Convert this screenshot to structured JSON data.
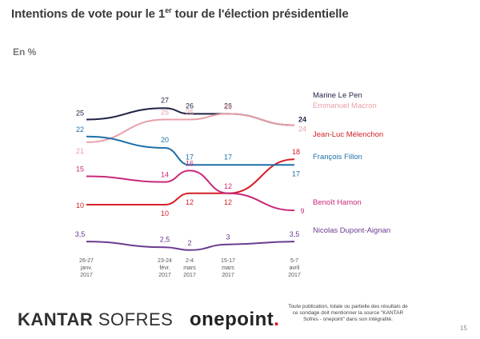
{
  "page": {
    "title_main": "Intentions de vote pour le 1",
    "title_sup": "er",
    "title_rest": " tour de l'élection présidentielle",
    "unit": "En %",
    "logo_kantar_bold": "KANTAR",
    "logo_kantar_light": "SOFRES",
    "logo_onepoint": "onepoint",
    "logo_onepoint_dot": ".",
    "notice": "Toute publication, totale ou partielle des résultats de ce sondage doit mentionner la source \"KANTAR Sofres - onepoint\" dans son intégralité.",
    "page_number": "15"
  },
  "chart_data": {
    "type": "line",
    "title": "Intentions de vote pour le 1er tour de l'élection présidentielle",
    "ylabel": "En %",
    "x_ticks": [
      {
        "lines": [
          "26-27",
          "janv.",
          "2017"
        ]
      },
      {
        "lines": [
          "23-24",
          "févr.",
          "2017"
        ]
      },
      {
        "lines": [
          "2-4",
          "mars",
          "2017"
        ]
      },
      {
        "lines": [
          "15-17",
          "mars",
          "2017"
        ]
      },
      {
        "lines": [
          "5-7",
          "avril",
          "2017"
        ]
      }
    ],
    "series": [
      {
        "name": "Marine Le Pen",
        "color": "#1f2244",
        "values": [
          25,
          27,
          26,
          26,
          24
        ],
        "labels": [
          "25",
          "27",
          "26",
          "26",
          "24"
        ]
      },
      {
        "name": "Emmanuel Macron",
        "color": "#e8a0a8",
        "values": [
          21,
          25,
          25,
          26,
          24
        ],
        "labels": [
          "21",
          "25",
          "25",
          "26",
          "24"
        ]
      },
      {
        "name": "Jean-Luc Mélenchon",
        "color": "#d62027",
        "values": [
          10,
          10,
          12,
          12,
          18
        ],
        "labels": [
          "10",
          "10",
          "12",
          "12",
          "18"
        ]
      },
      {
        "name": "François Fillon",
        "color": "#1f6fa8",
        "values": [
          22,
          20,
          17,
          17,
          17
        ],
        "labels": [
          "22",
          "20",
          "17",
          "17",
          "17"
        ]
      },
      {
        "name": "Benoît Hamon",
        "color": "#c8297a",
        "values": [
          15,
          14,
          16,
          12,
          9
        ],
        "labels": [
          "15",
          "14",
          "16",
          "12",
          "9"
        ]
      },
      {
        "name": "Nicolas Dupont-Aignan",
        "color": "#6a3b8f",
        "values": [
          3.5,
          2.5,
          2,
          3,
          3.5
        ],
        "labels": [
          "3,5",
          "2,5",
          "2",
          "3",
          "3,5"
        ]
      }
    ]
  }
}
